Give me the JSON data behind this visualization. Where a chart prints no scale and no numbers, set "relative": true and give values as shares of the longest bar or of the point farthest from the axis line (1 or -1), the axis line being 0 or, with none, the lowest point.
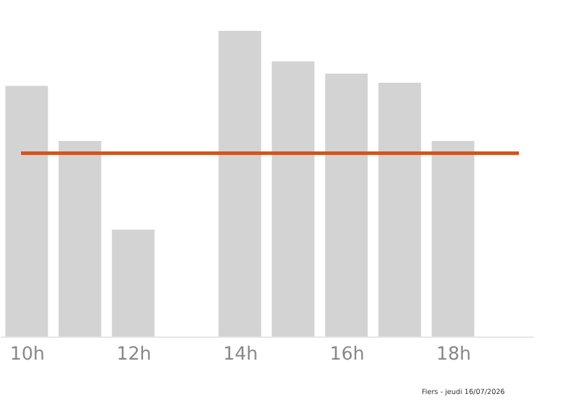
{
  "chart_data": {
    "type": "bar",
    "relative": true,
    "x": [
      10,
      11,
      12,
      14,
      15,
      16,
      17,
      18
    ],
    "values": [
      0.82,
      0.64,
      0.35,
      1,
      0.9,
      0.86,
      0.83,
      0.64
    ],
    "color": "#d3d3d3",
    "xlim": [
      9.5,
      19.5
    ],
    "xticks": [
      {
        "value": 10,
        "label": "10h"
      },
      {
        "value": 12,
        "label": "12h"
      },
      {
        "value": 14,
        "label": "14h"
      },
      {
        "value": 16,
        "label": "16h"
      },
      {
        "value": 18,
        "label": "18h"
      }
    ],
    "ref_lines": [
      {
        "axis": "y",
        "value": 0.6,
        "color": "#d2541e"
      }
    ],
    "annotations": [
      "Fiers - jeudi 16/07/2026"
    ],
    "grid": false
  }
}
